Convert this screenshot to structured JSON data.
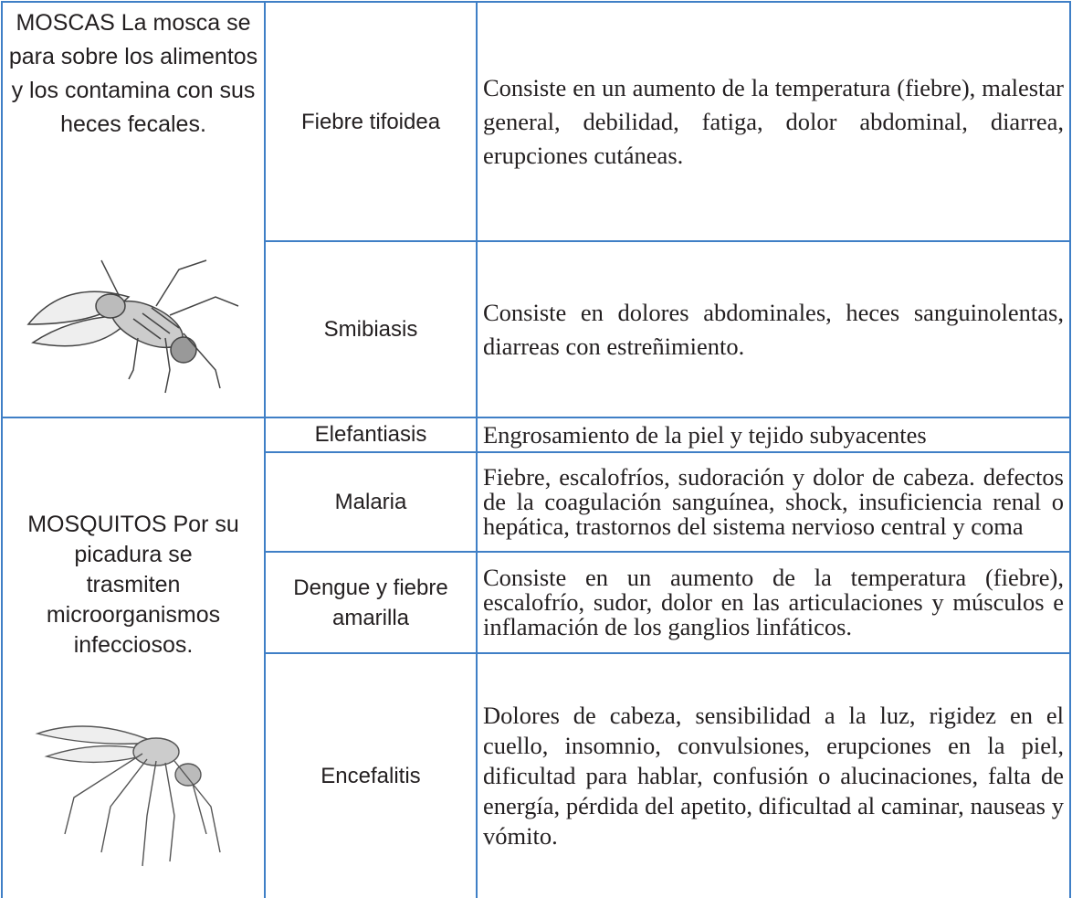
{
  "table": {
    "groups": [
      {
        "description": "MOSCAS La mosca se para sobre los alimentos y los contamina con sus heces fecales.",
        "diseases": [
          {
            "name": "Fiebre tifoidea",
            "symptoms": "Consiste en un aumento de la temperatura (fiebre), malestar general, debilidad, fatiga, dolor abdominal, diarrea, erupciones cutáneas."
          },
          {
            "name": "Smibiasis",
            "symptoms": "Consiste en dolores abdominales, heces sanguinolentas, diarreas con estreñimiento."
          }
        ]
      },
      {
        "description": "MOSQUITOS Por su picadura se trasmiten microorganismos infecciosos.",
        "diseases": [
          {
            "name": "Elefantiasis",
            "symptoms": "Engrosamiento de la piel y tejido subyacentes"
          },
          {
            "name": "Malaria",
            "symptoms": "Fiebre, escalofríos, sudoración y dolor de cabeza. defectos de la coagulación sanguínea, shock, insuficiencia renal o hepática, trastornos del sistema nervioso central y coma"
          },
          {
            "name": "Dengue y fiebre amarilla",
            "symptoms": "Consiste en un aumento de la temperatura (fiebre), escalofrío, sudor, dolor en las articulaciones y músculos e inflamación de los ganglios linfáticos."
          },
          {
            "name": "Encefalitis",
            "symptoms": "Dolores de cabeza, sensibilidad a la luz, rigidez en el cuello, insomnio, convulsiones, erupciones en la piel, dificultad para hablar, confusión o alucinaciones, falta de energía, pérdida del apetito, dificultad al caminar, nauseas y vómito."
          }
        ]
      }
    ]
  }
}
